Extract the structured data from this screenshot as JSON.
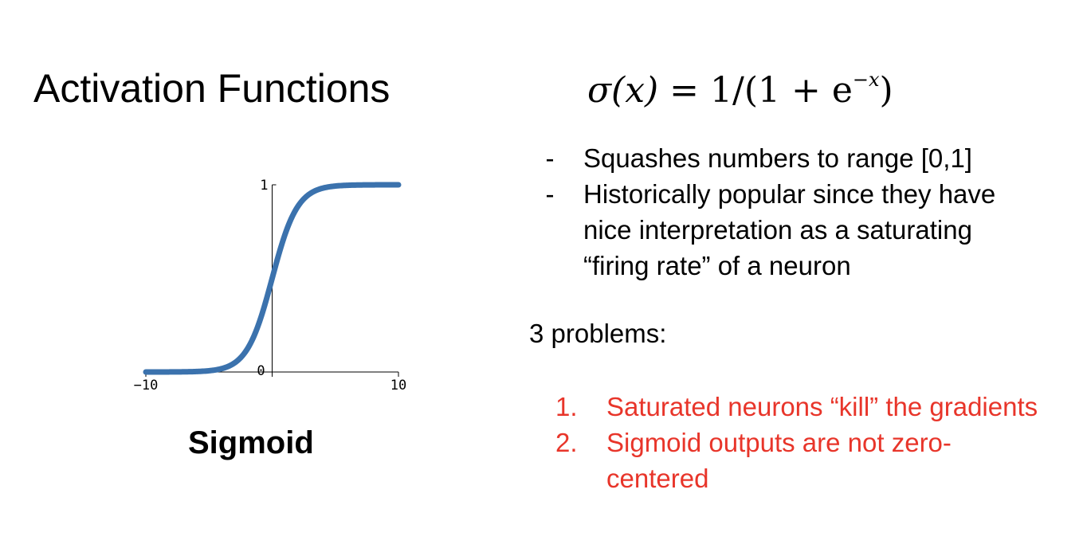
{
  "slide": {
    "title": "Activation Functions",
    "formula": {
      "lhs": "σ(x)",
      "equals": " = ",
      "rhs_prefix": "1/(1 + e",
      "exponent": "−x",
      "rhs_suffix": ")"
    },
    "bullets": [
      {
        "marker": "-",
        "text": "Squashes numbers to range [0,1]"
      },
      {
        "marker": "-",
        "text": "Historically popular since they have nice interpretation as a saturating “firing rate” of a neuron"
      }
    ],
    "problems_heading": "3 problems:",
    "problems": [
      {
        "marker": "1.",
        "text": "Saturated neurons “kill” the gradients"
      },
      {
        "marker": "2.",
        "text": "Sigmoid outputs are not zero-centered"
      }
    ],
    "problem_color": "#e8352a",
    "chart_caption": "Sigmoid"
  },
  "chart_data": {
    "type": "line",
    "title": "",
    "xlabel": "",
    "ylabel": "",
    "xlim": [
      -10,
      10
    ],
    "ylim": [
      0,
      1
    ],
    "x_ticks": [
      "−10",
      "0",
      "10"
    ],
    "y_ticks": [
      "1"
    ],
    "grid": false,
    "series": [
      {
        "color": "#3b72ad",
        "x": [
          -10,
          -8,
          -6,
          -5,
          -4,
          -3,
          -2,
          -1,
          0,
          1,
          2,
          3,
          4,
          5,
          6,
          8,
          10
        ],
        "values": [
          5e-05,
          0.0003,
          0.0025,
          0.0067,
          0.018,
          0.047,
          0.119,
          0.269,
          0.5,
          0.731,
          0.881,
          0.953,
          0.982,
          0.993,
          0.9975,
          0.9997,
          0.99995
        ]
      }
    ]
  }
}
